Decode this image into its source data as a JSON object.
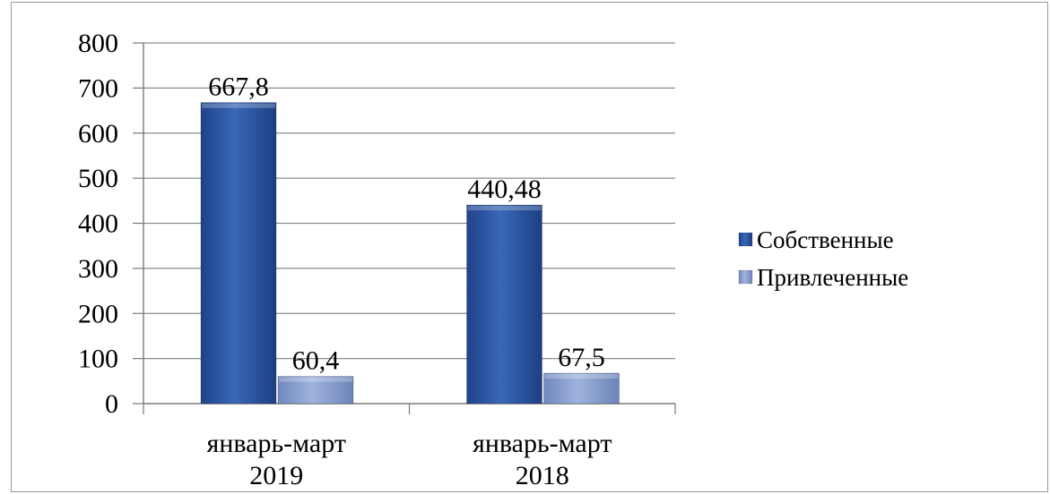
{
  "chart_data": {
    "type": "bar",
    "categories": [
      [
        "январь-март",
        "2019"
      ],
      [
        "январь-март",
        "2018"
      ]
    ],
    "series": [
      {
        "name": "Собственные",
        "values": [
          667.8,
          440.48
        ],
        "labels": [
          "667,8",
          "440,48"
        ],
        "color": "#2f5aa8"
      },
      {
        "name": "Привлеченные",
        "values": [
          60.4,
          67.5
        ],
        "labels": [
          "60,4",
          "67,5"
        ],
        "color": "#8aa1cf"
      }
    ],
    "yticks": [
      0,
      100,
      200,
      300,
      400,
      500,
      600,
      700,
      800
    ],
    "ylim": [
      0,
      800
    ],
    "grid": true,
    "legend": "right",
    "title": "",
    "xlabel": "",
    "ylabel": ""
  }
}
